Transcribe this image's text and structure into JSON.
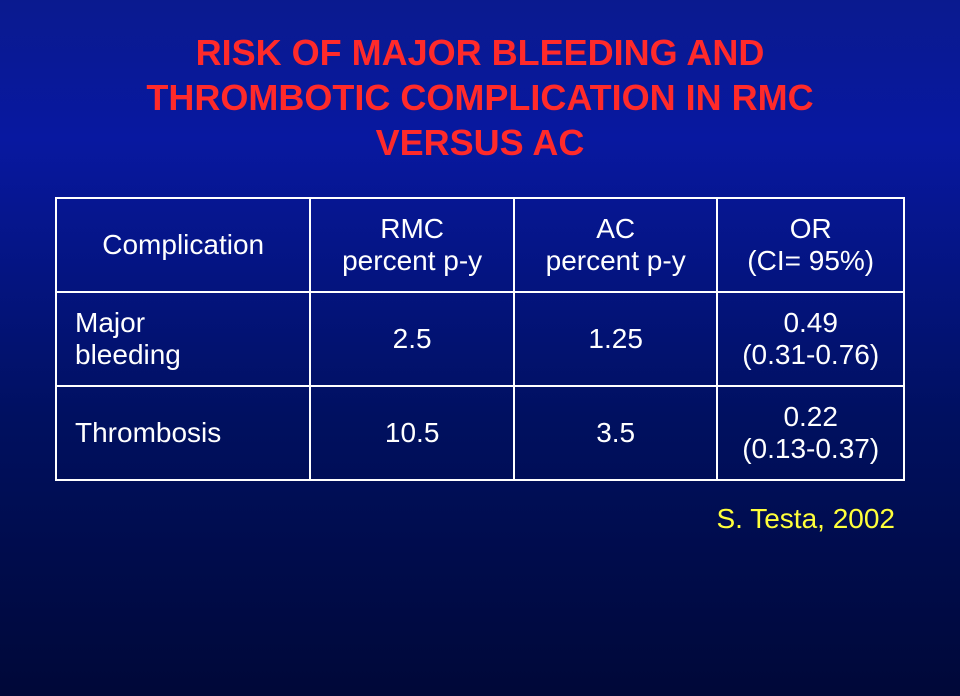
{
  "title": {
    "line1": "RISK OF MAJOR BLEEDING AND",
    "line2": "THROMBOTIC COMPLICATION IN RMC",
    "line3": "VERSUS AC",
    "color": "#ff2a2a",
    "fontsize_pt": 36
  },
  "table": {
    "border_color": "#ffffff",
    "text_color": "#ffffff",
    "cell_fontsize_pt": 28,
    "columns": [
      {
        "top": "Complication",
        "sub": ""
      },
      {
        "top": "RMC",
        "sub": "percent p-y"
      },
      {
        "top": "AC",
        "sub": "percent p-y"
      },
      {
        "top": "OR",
        "sub": "(CI= 95%)"
      }
    ],
    "rows": [
      {
        "label_line1": "Major",
        "label_line2": "bleeding",
        "rmc": "2.5",
        "ac": "1.25",
        "or_value": "0.49",
        "or_ci": "(0.31-0.76)"
      },
      {
        "label_line1": "Thrombosis",
        "label_line2": "",
        "rmc": "10.5",
        "ac": "3.5",
        "or_value": "0.22",
        "or_ci": "(0.13-0.37)"
      }
    ]
  },
  "citation": {
    "text": "S. Testa, 2002",
    "color": "#ffff3a",
    "fontsize_pt": 28
  },
  "background": {
    "gradient_top": "#0a1a8f",
    "gradient_bottom": "#000838"
  }
}
